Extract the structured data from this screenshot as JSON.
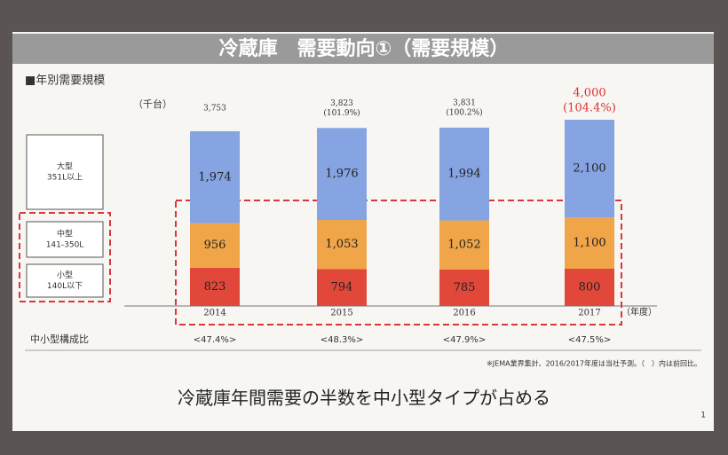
{
  "chart_data": {
    "type": "stacked-bar",
    "title": "冷蔵庫　需要動向①（需要規模）",
    "subtitle": "■年別需要規模",
    "unit": "（千台）",
    "x_label": "（年度）",
    "categories": [
      "2014",
      "2015",
      "2016",
      "2017"
    ],
    "series": [
      {
        "name": "小型",
        "range": "140L以下",
        "color": "#e2483a",
        "values": [
          823,
          794,
          785,
          800
        ]
      },
      {
        "name": "中型",
        "range": "141-350L",
        "color": "#efa548",
        "values": [
          956,
          1053,
          1052,
          1100
        ],
        "value_labels": [
          "956",
          "1,053",
          "1,052",
          "1,100"
        ]
      },
      {
        "name": "大型",
        "range": "351L以上",
        "color": "#86a3e2",
        "values": [
          1974,
          1976,
          1994,
          2100
        ],
        "value_labels": [
          "1,974",
          "1,976",
          "1,994",
          "2,100"
        ]
      }
    ],
    "totals": {
      "values": [
        3753,
        3823,
        3831,
        4000
      ],
      "value_labels": [
        "3,753",
        "3,823",
        "3,831",
        "4,000"
      ]
    },
    "growth": {
      "values": [
        null,
        101.9,
        100.2,
        104.4
      ],
      "value_labels": [
        null,
        "(101.9%)",
        "(100.2%)",
        "(104.4%)"
      ]
    },
    "ratio": {
      "label": "中小型構成比",
      "values": [
        47.4,
        48.3,
        47.9,
        47.5
      ],
      "value_labels": [
        "<47.4%>",
        "<48.3%>",
        "<47.9%>",
        "<47.5%>"
      ]
    },
    "footnote": "※JEMA業界集計、2016/2017年度は当社予測。（　）内は前回比。",
    "headline": "冷蔵庫年間需要の半数を中小型タイプが占める",
    "page_number": 1
  }
}
